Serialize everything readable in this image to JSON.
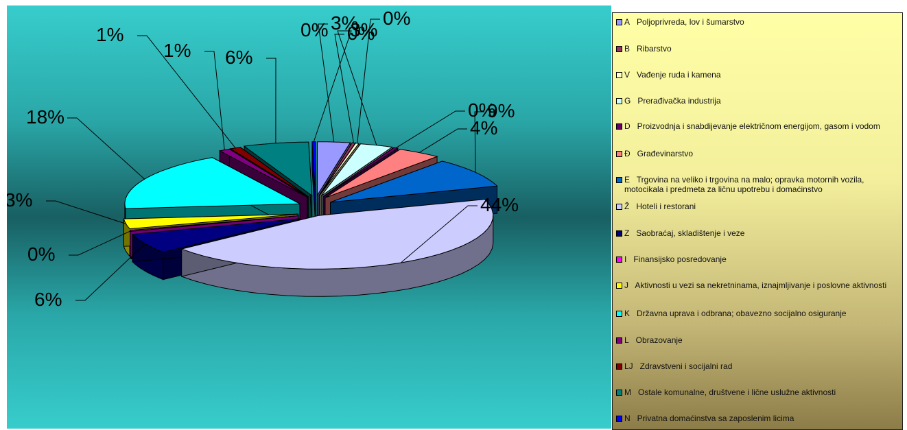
{
  "chart_data": {
    "type": "pie",
    "title": "",
    "slices": [
      {
        "code": "A",
        "label": "Poljoprivreda, lov i šumarstvo",
        "percent_label": "3%",
        "value": 3,
        "color": "#9999ff"
      },
      {
        "code": "B",
        "label": "Ribarstvo",
        "percent_label": "0%",
        "value": 0.3,
        "color": "#993366"
      },
      {
        "code": "V",
        "label": "Vađenje ruda i kamena",
        "percent_label": "0%",
        "value": 0.3,
        "color": "#ffffcc"
      },
      {
        "code": "G",
        "label": "Prerađivačka industrija",
        "percent_label": "3%",
        "value": 3,
        "color": "#ccffff"
      },
      {
        "code": "D",
        "label": "Proizvodnja i snabdijevanje električnom energijom, gasom i vodom",
        "percent_label": "0%",
        "value": 0.4,
        "color": "#660066"
      },
      {
        "code": "Đ",
        "label": "Građevinarstvo",
        "percent_label": "4%",
        "value": 4,
        "color": "#ff8080"
      },
      {
        "code": "E",
        "label": "Trgovina na veliko i trgovina na malo; opravka motornih vozila, motocikala i predmeta za ličnu upotrebu i domaćinstvo",
        "percent_label": "9%",
        "value": 9,
        "color": "#0066cc"
      },
      {
        "code": "Ž",
        "label": "Hoteli i restorani",
        "percent_label": "44%",
        "value": 44,
        "color": "#ccccff"
      },
      {
        "code": "Z",
        "label": "Saobraćaj, skladištenje i veze",
        "percent_label": "6%",
        "value": 6,
        "color": "#000080"
      },
      {
        "code": "I",
        "label": "Finansijsko posredovanje",
        "percent_label": "0%",
        "value": 0.3,
        "color": "#ff00ff"
      },
      {
        "code": "J",
        "label": "Aktivnosti u vezi sa nekretninama, iznajmljivanje i poslovne aktivnosti",
        "percent_label": "3%",
        "value": 3,
        "color": "#ffff00"
      },
      {
        "code": "K",
        "label": "Državna uprava i odbrana; obavezno socijalno osiguranje",
        "percent_label": "18%",
        "value": 18,
        "color": "#00ffff"
      },
      {
        "code": "L",
        "label": "Obrazovanje",
        "percent_label": "1%",
        "value": 1,
        "color": "#800080"
      },
      {
        "code": "LJ",
        "label": "Zdravstveni i socijalni rad",
        "percent_label": "1%",
        "value": 1,
        "color": "#800000"
      },
      {
        "code": "M",
        "label": "Ostale komunalne, društvene i lične uslužne aktivnosti",
        "percent_label": "6%",
        "value": 6,
        "color": "#008080"
      },
      {
        "code": "N",
        "label": "Privatna domaćinstva sa zaposlenim licima",
        "percent_label": "0%",
        "value": 0.3,
        "color": "#0000ff"
      }
    ],
    "legend_position": "right",
    "style": "3d-exploded-pie"
  }
}
